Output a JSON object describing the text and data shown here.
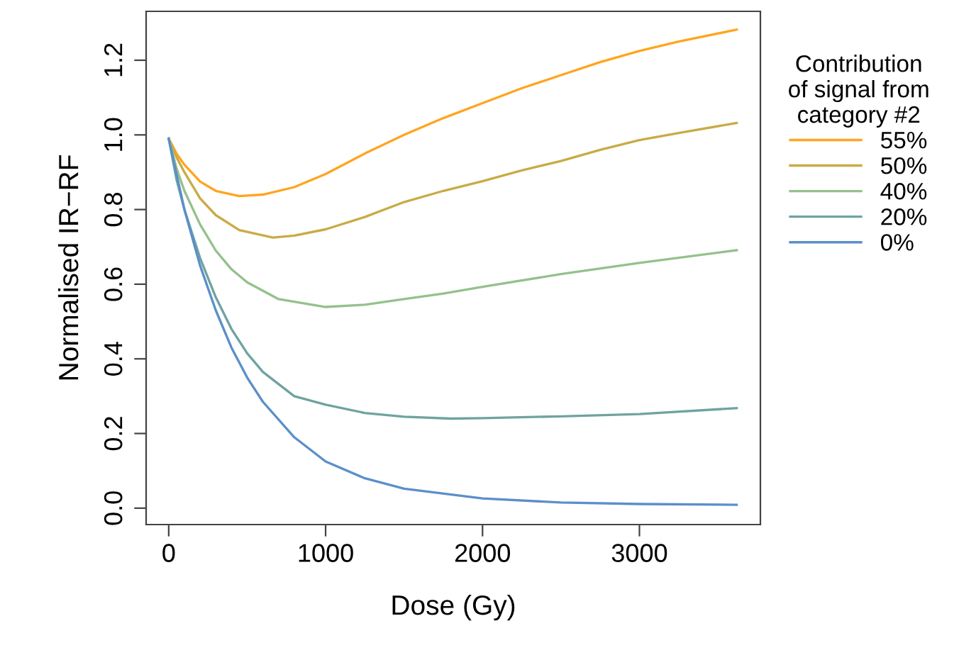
{
  "chart_data": {
    "type": "line",
    "xlabel": "Dose (Gy)",
    "ylabel": "Normalised IR−RF",
    "legend_title": "Contribution\nof signal from\ncategory #2",
    "legend": "right",
    "grid": false,
    "marker": "none",
    "line_style": "solid",
    "xlim": [
      -144,
      3771
    ],
    "ylim": [
      -0.044,
      1.331
    ],
    "xticks": [
      0,
      1000,
      2000,
      3000
    ],
    "yticks": [
      {
        "value": 0,
        "label": "0.0"
      },
      {
        "value": 0.2,
        "label": "0.2"
      },
      {
        "value": 0.4,
        "label": "0.4"
      },
      {
        "value": 0.6,
        "label": "0.6"
      },
      {
        "value": 0.8,
        "label": "0.8"
      },
      {
        "value": 1,
        "label": "1.0"
      },
      {
        "value": 1.2,
        "label": "1.2"
      }
    ],
    "series": [
      {
        "name": "55%",
        "color": "#ffa51f",
        "x": [
          0,
          50,
          100,
          200,
          300,
          450,
          600,
          800,
          1000,
          1250,
          1500,
          1750,
          2000,
          2250,
          2500,
          2750,
          3000,
          3250,
          3620
        ],
        "values": [
          0.99,
          0.95,
          0.92,
          0.875,
          0.85,
          0.836,
          0.84,
          0.86,
          0.895,
          0.95,
          1.0,
          1.045,
          1.085,
          1.125,
          1.16,
          1.195,
          1.225,
          1.25,
          1.282
        ]
      },
      {
        "name": "50%",
        "color": "#c9ab45",
        "x": [
          0,
          50,
          100,
          200,
          300,
          450,
          664,
          800,
          1000,
          1250,
          1500,
          1750,
          2000,
          2250,
          2500,
          2750,
          3000,
          3250,
          3620
        ],
        "values": [
          0.99,
          0.94,
          0.9,
          0.83,
          0.785,
          0.745,
          0.725,
          0.73,
          0.747,
          0.78,
          0.82,
          0.85,
          0.876,
          0.905,
          0.93,
          0.96,
          0.986,
          1.005,
          1.032
        ]
      },
      {
        "name": "40%",
        "color": "#94c18c",
        "x": [
          0,
          50,
          100,
          200,
          300,
          400,
          500,
          700,
          1000,
          1250,
          1500,
          1750,
          2000,
          2500,
          3000,
          3620
        ],
        "values": [
          0.99,
          0.91,
          0.85,
          0.76,
          0.69,
          0.64,
          0.605,
          0.56,
          0.539,
          0.545,
          0.56,
          0.575,
          0.593,
          0.627,
          0.657,
          0.691
        ]
      },
      {
        "name": "20%",
        "color": "#6fa3a0",
        "x": [
          0,
          50,
          100,
          200,
          300,
          400,
          500,
          600,
          800,
          1000,
          1250,
          1500,
          1800,
          2000,
          2500,
          3000,
          3620
        ],
        "values": [
          0.99,
          0.88,
          0.8,
          0.67,
          0.565,
          0.48,
          0.415,
          0.365,
          0.3,
          0.277,
          0.255,
          0.245,
          0.24,
          0.241,
          0.246,
          0.252,
          0.268
        ]
      },
      {
        "name": "0%",
        "color": "#5b8fc9",
        "x": [
          0,
          100,
          200,
          300,
          400,
          500,
          600,
          800,
          1000,
          1250,
          1500,
          2000,
          2500,
          3000,
          3620
        ],
        "values": [
          0.99,
          0.8,
          0.65,
          0.53,
          0.43,
          0.35,
          0.285,
          0.19,
          0.125,
          0.08,
          0.052,
          0.026,
          0.015,
          0.011,
          0.009
        ]
      }
    ]
  }
}
